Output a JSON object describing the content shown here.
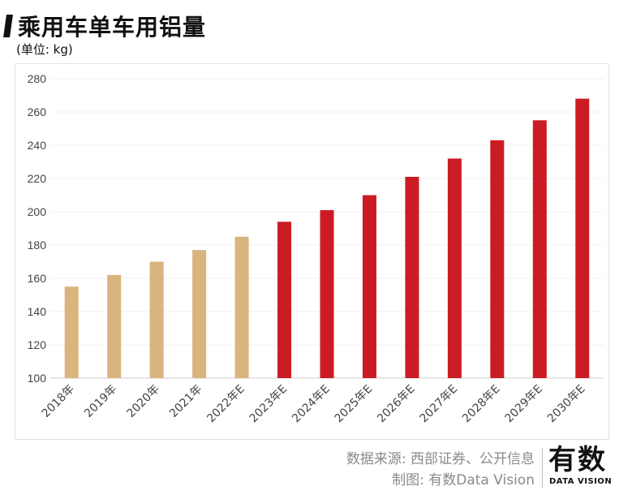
{
  "header": {
    "title": "乘用车单车用铝量",
    "unit": "(单位: kg)"
  },
  "footer": {
    "source": "数据来源: 西部证券、公开信息",
    "maker": "制图: 有数Data Vision",
    "logo_zh": "有数",
    "logo_en": "DATA VISION"
  },
  "colors": {
    "actual": "#d9b47f",
    "forecast": "#cc1c23"
  },
  "chart_data": {
    "type": "bar",
    "title": "乘用车单车用铝量",
    "unit": "kg",
    "categories": [
      "2018年",
      "2019年",
      "2020年",
      "2021年",
      "2022年E",
      "2023年E",
      "2024年E",
      "2025年E",
      "2026年E",
      "2027年E",
      "2028年E",
      "2029年E",
      "2030年E"
    ],
    "values": [
      155,
      162,
      170,
      177,
      185,
      194,
      201,
      210,
      221,
      232,
      243,
      255,
      268
    ],
    "bar_colors": [
      "#d9b47f",
      "#d9b47f",
      "#d9b47f",
      "#d9b47f",
      "#d9b47f",
      "#cc1c23",
      "#cc1c23",
      "#cc1c23",
      "#cc1c23",
      "#cc1c23",
      "#cc1c23",
      "#cc1c23",
      "#cc1c23"
    ],
    "ylim": [
      100,
      280
    ],
    "yticks": [
      100,
      120,
      140,
      160,
      180,
      200,
      220,
      240,
      260,
      280
    ],
    "grid": true
  }
}
